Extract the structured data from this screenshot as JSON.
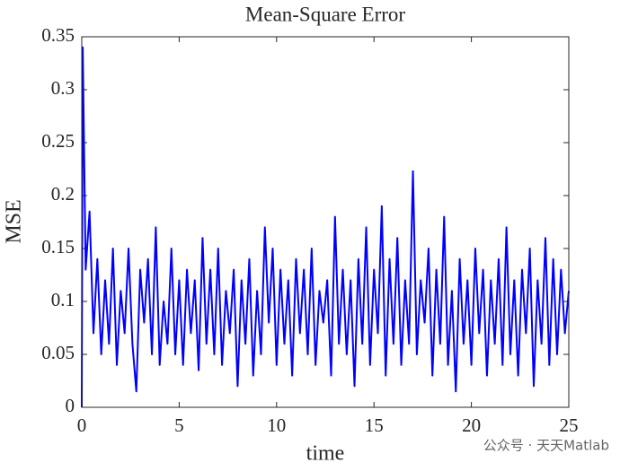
{
  "chart_data": {
    "type": "line",
    "title": "Mean-Square Error",
    "xlabel": "time",
    "ylabel": "MSE",
    "watermark": "公众号 · 天天Matlab",
    "xlim": [
      0,
      25
    ],
    "ylim": [
      0,
      0.35
    ],
    "xticks": [
      0,
      5,
      10,
      15,
      20,
      25
    ],
    "yticks": [
      0,
      0.05,
      0.1,
      0.15,
      0.2,
      0.25,
      0.3,
      0.35
    ],
    "grid": false,
    "series": [
      {
        "name": "MSE",
        "color": "#0000ff",
        "x": [
          0,
          0.05,
          0.2,
          0.4,
          0.6,
          0.8,
          1,
          1.2,
          1.4,
          1.6,
          1.8,
          2,
          2.2,
          2.4,
          2.6,
          2.8,
          3,
          3.2,
          3.4,
          3.6,
          3.8,
          4,
          4.2,
          4.4,
          4.6,
          4.8,
          5,
          5.2,
          5.4,
          5.6,
          5.8,
          6,
          6.2,
          6.4,
          6.6,
          6.8,
          7,
          7.2,
          7.4,
          7.6,
          7.8,
          8,
          8.2,
          8.4,
          8.6,
          8.8,
          9,
          9.2,
          9.4,
          9.6,
          9.8,
          10,
          10.2,
          10.4,
          10.6,
          10.8,
          11,
          11.2,
          11.4,
          11.6,
          11.8,
          12,
          12.2,
          12.4,
          12.6,
          12.8,
          13,
          13.2,
          13.4,
          13.6,
          13.8,
          14,
          14.2,
          14.4,
          14.6,
          14.8,
          15,
          15.2,
          15.4,
          15.6,
          15.8,
          16,
          16.2,
          16.4,
          16.6,
          16.8,
          17,
          17.2,
          17.4,
          17.6,
          17.8,
          18,
          18.2,
          18.4,
          18.6,
          18.8,
          19,
          19.2,
          19.4,
          19.6,
          19.8,
          20,
          20.2,
          20.4,
          20.6,
          20.8,
          21,
          21.2,
          21.4,
          21.6,
          21.8,
          22,
          22.2,
          22.4,
          22.6,
          22.8,
          23,
          23.2,
          23.4,
          23.6,
          23.8,
          24,
          24.2,
          24.4,
          24.6,
          24.8,
          25
        ],
        "values": [
          0,
          0.34,
          0.13,
          0.185,
          0.07,
          0.14,
          0.05,
          0.12,
          0.06,
          0.15,
          0.04,
          0.11,
          0.07,
          0.15,
          0.06,
          0.015,
          0.13,
          0.08,
          0.14,
          0.05,
          0.17,
          0.04,
          0.1,
          0.06,
          0.15,
          0.05,
          0.12,
          0.04,
          0.13,
          0.07,
          0.12,
          0.035,
          0.16,
          0.06,
          0.13,
          0.05,
          0.15,
          0.04,
          0.11,
          0.07,
          0.13,
          0.02,
          0.12,
          0.06,
          0.14,
          0.03,
          0.11,
          0.05,
          0.17,
          0.08,
          0.15,
          0.04,
          0.13,
          0.06,
          0.12,
          0.03,
          0.14,
          0.07,
          0.13,
          0.05,
          0.15,
          0.04,
          0.11,
          0.08,
          0.12,
          0.03,
          0.18,
          0.06,
          0.13,
          0.05,
          0.12,
          0.02,
          0.14,
          0.06,
          0.17,
          0.04,
          0.13,
          0.07,
          0.19,
          0.03,
          0.14,
          0.06,
          0.16,
          0.04,
          0.12,
          0.06,
          0.223,
          0.05,
          0.12,
          0.08,
          0.15,
          0.03,
          0.13,
          0.06,
          0.18,
          0.04,
          0.11,
          0.015,
          0.14,
          0.06,
          0.12,
          0.04,
          0.15,
          0.07,
          0.13,
          0.03,
          0.12,
          0.06,
          0.14,
          0.04,
          0.17,
          0.05,
          0.12,
          0.03,
          0.13,
          0.07,
          0.15,
          0.02,
          0.12,
          0.06,
          0.16,
          0.04,
          0.14,
          0.05,
          0.13,
          0.07,
          0.11
        ]
      }
    ]
  }
}
